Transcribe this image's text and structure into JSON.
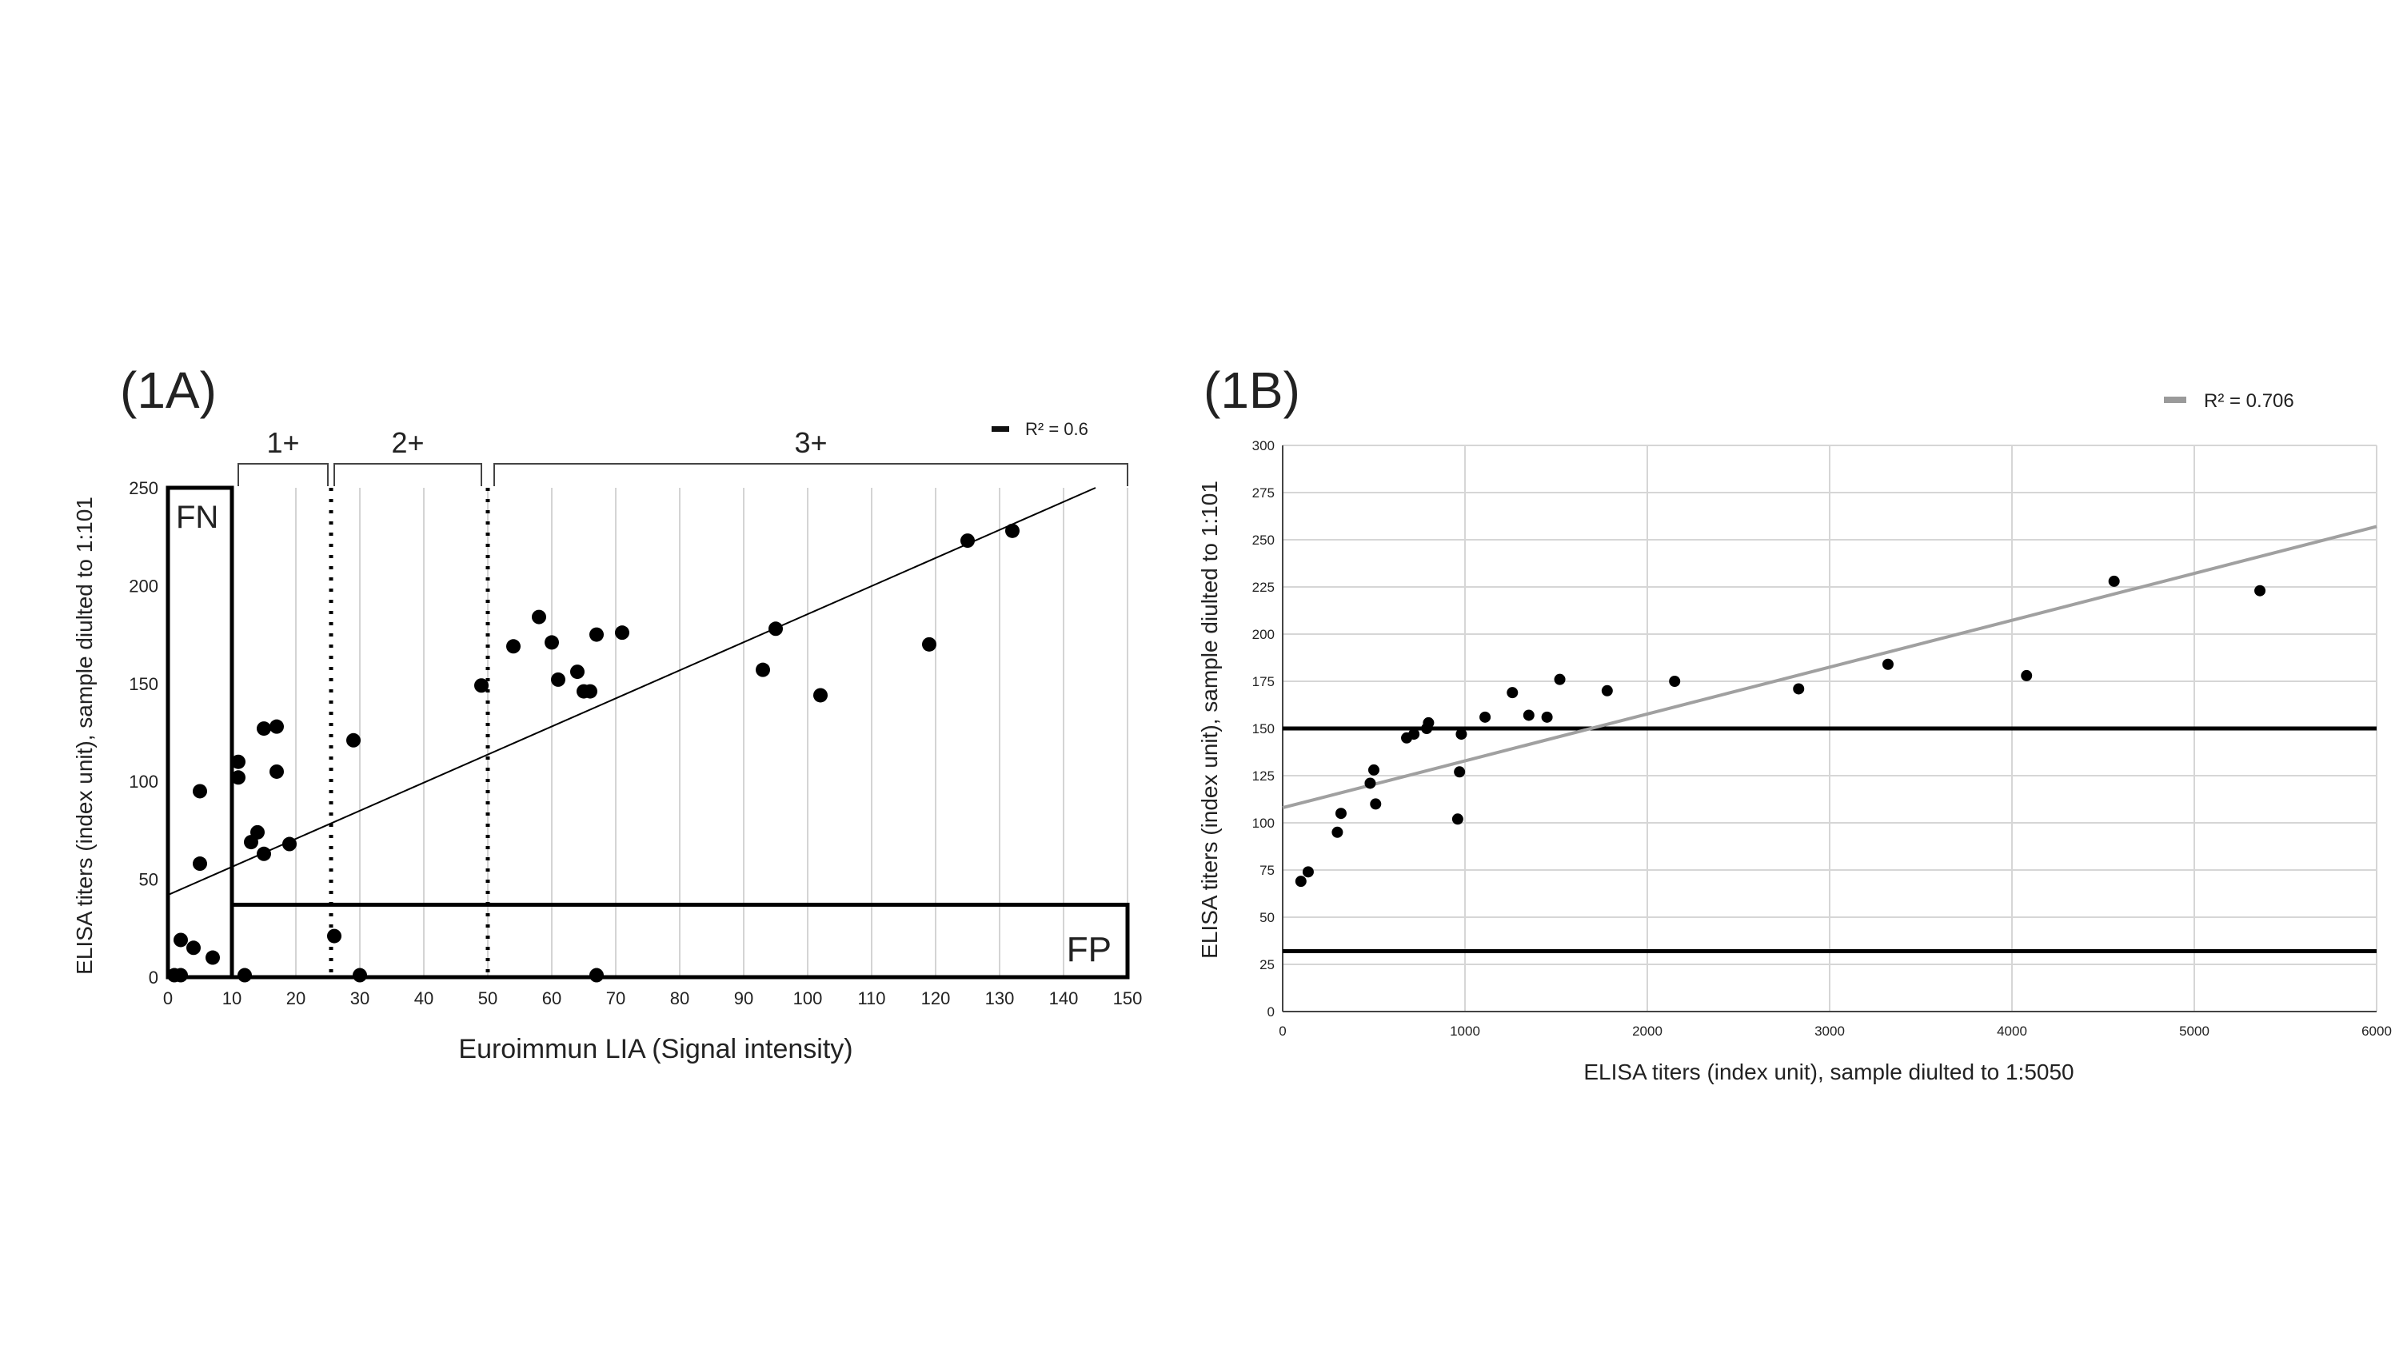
{
  "chart_data": [
    {
      "type": "scatter",
      "panel_label": "(1A)",
      "xlabel": "Euroimmun LIA (Signal intensity)",
      "ylabel": "ELISA titers (index unit), sample diulted to 1:101",
      "xlim": [
        0,
        150
      ],
      "ylim": [
        0,
        250
      ],
      "x_ticks": [
        0,
        10,
        20,
        30,
        40,
        50,
        60,
        70,
        80,
        90,
        100,
        110,
        120,
        130,
        140,
        150
      ],
      "y_ticks": [
        0,
        50,
        100,
        150,
        200,
        250
      ],
      "grid": "vertical",
      "legend": {
        "label": "R² = 0.6",
        "position": "top-right"
      },
      "trendline": {
        "x": [
          0,
          145
        ],
        "y": [
          42,
          250
        ]
      },
      "brackets": [
        {
          "label": "1+",
          "from": 11,
          "to": 25
        },
        {
          "label": "2+",
          "from": 26,
          "to": 49
        },
        {
          "label": "3+",
          "from": 51,
          "to": 150
        }
      ],
      "cutoff_lines": [
        25.5,
        50
      ],
      "regions": [
        {
          "label": "FN",
          "x": [
            0,
            10
          ],
          "y": [
            0,
            250
          ]
        },
        {
          "label": "FP",
          "x": [
            10,
            150
          ],
          "y": [
            0,
            37
          ]
        }
      ],
      "points": [
        {
          "x": 1,
          "y": 1
        },
        {
          "x": 2,
          "y": 1
        },
        {
          "x": 2,
          "y": 19
        },
        {
          "x": 4,
          "y": 15
        },
        {
          "x": 7,
          "y": 10
        },
        {
          "x": 5,
          "y": 58
        },
        {
          "x": 5,
          "y": 95
        },
        {
          "x": 11,
          "y": 102
        },
        {
          "x": 11,
          "y": 110
        },
        {
          "x": 12,
          "y": 1
        },
        {
          "x": 13,
          "y": 69
        },
        {
          "x": 14,
          "y": 74
        },
        {
          "x": 15,
          "y": 63
        },
        {
          "x": 15,
          "y": 127
        },
        {
          "x": 17,
          "y": 128
        },
        {
          "x": 17,
          "y": 105
        },
        {
          "x": 19,
          "y": 68
        },
        {
          "x": 26,
          "y": 21
        },
        {
          "x": 29,
          "y": 121
        },
        {
          "x": 30,
          "y": 1
        },
        {
          "x": 49,
          "y": 149
        },
        {
          "x": 54,
          "y": 169
        },
        {
          "x": 58,
          "y": 184
        },
        {
          "x": 60,
          "y": 171
        },
        {
          "x": 61,
          "y": 152
        },
        {
          "x": 64,
          "y": 156
        },
        {
          "x": 65,
          "y": 146
        },
        {
          "x": 66,
          "y": 146
        },
        {
          "x": 67,
          "y": 175
        },
        {
          "x": 67,
          "y": 1
        },
        {
          "x": 71,
          "y": 176
        },
        {
          "x": 93,
          "y": 157
        },
        {
          "x": 95,
          "y": 178
        },
        {
          "x": 102,
          "y": 144
        },
        {
          "x": 119,
          "y": 170
        },
        {
          "x": 125,
          "y": 223
        },
        {
          "x": 132,
          "y": 228
        }
      ]
    },
    {
      "type": "scatter",
      "panel_label": "(1B)",
      "xlabel": "ELISA titers (index unit), sample diulted to 1:5050",
      "ylabel": "ELISA titers (index unit), sample diulted to 1:101",
      "xlim": [
        0,
        6000
      ],
      "ylim": [
        0,
        300
      ],
      "x_ticks": [
        0,
        1000,
        2000,
        3000,
        4000,
        5000,
        6000
      ],
      "y_ticks": [
        0,
        25,
        50,
        75,
        100,
        125,
        150,
        175,
        200,
        225,
        250,
        275,
        300
      ],
      "grid": "both",
      "legend": {
        "label": "R² = 0.706",
        "position": "top-right"
      },
      "trendline": {
        "x": [
          0,
          6000
        ],
        "y": [
          108,
          257
        ]
      },
      "cutoff_lines_y": [
        150,
        32
      ],
      "points": [
        {
          "x": 100,
          "y": 69
        },
        {
          "x": 140,
          "y": 74
        },
        {
          "x": 300,
          "y": 95
        },
        {
          "x": 320,
          "y": 105
        },
        {
          "x": 480,
          "y": 121
        },
        {
          "x": 500,
          "y": 128
        },
        {
          "x": 510,
          "y": 110
        },
        {
          "x": 680,
          "y": 145
        },
        {
          "x": 720,
          "y": 147
        },
        {
          "x": 790,
          "y": 150
        },
        {
          "x": 800,
          "y": 153
        },
        {
          "x": 960,
          "y": 102
        },
        {
          "x": 970,
          "y": 127
        },
        {
          "x": 980,
          "y": 147
        },
        {
          "x": 1110,
          "y": 156
        },
        {
          "x": 1260,
          "y": 169
        },
        {
          "x": 1350,
          "y": 157
        },
        {
          "x": 1450,
          "y": 156
        },
        {
          "x": 1520,
          "y": 176
        },
        {
          "x": 1780,
          "y": 170
        },
        {
          "x": 2150,
          "y": 175
        },
        {
          "x": 2830,
          "y": 171
        },
        {
          "x": 3320,
          "y": 184
        },
        {
          "x": 4080,
          "y": 178
        },
        {
          "x": 4560,
          "y": 228
        },
        {
          "x": 5360,
          "y": 223
        }
      ]
    }
  ]
}
